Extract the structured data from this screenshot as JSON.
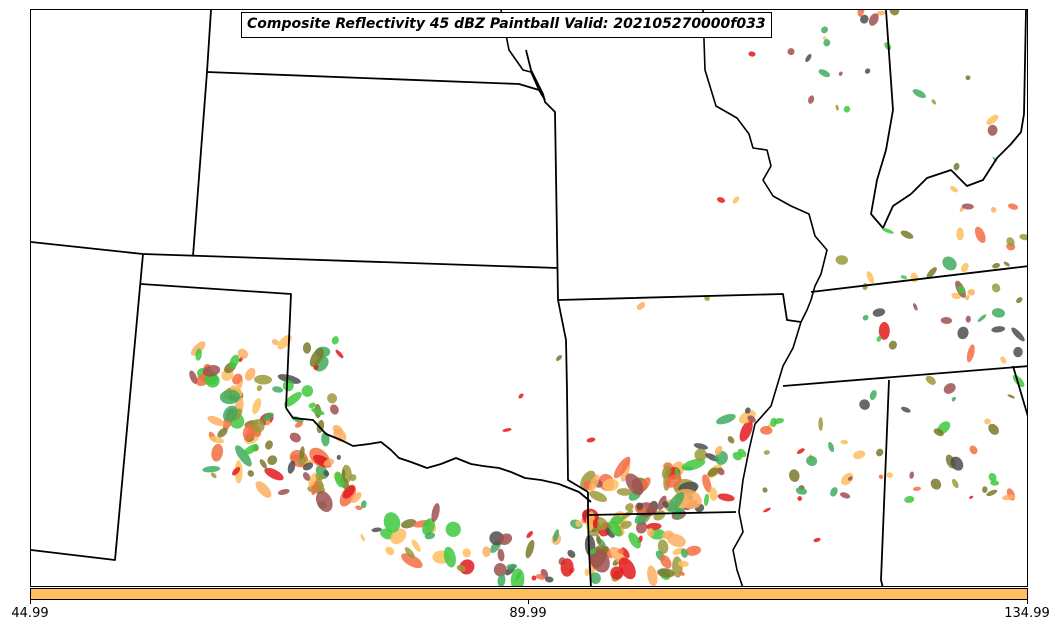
{
  "title": "Composite Reflectivity 45 dBZ Paintball Valid: 202105270000f033",
  "colorbar": {
    "color": "#fdbf5f",
    "ticks": [
      "44.99",
      "89.99",
      "134.99"
    ]
  },
  "colors": {
    "state_lines": "#000000",
    "members": [
      "#e31a1c",
      "#f46d43",
      "#fdae61",
      "#fdbf5f",
      "#a05050",
      "#4d4d4d",
      "#9a9a3a",
      "#41ab5d",
      "#3ec83e",
      "#7a7a2a"
    ]
  },
  "map": {
    "features": [
      "state-boundaries",
      "mississippi-river",
      "reflectivity-paintball"
    ]
  }
}
